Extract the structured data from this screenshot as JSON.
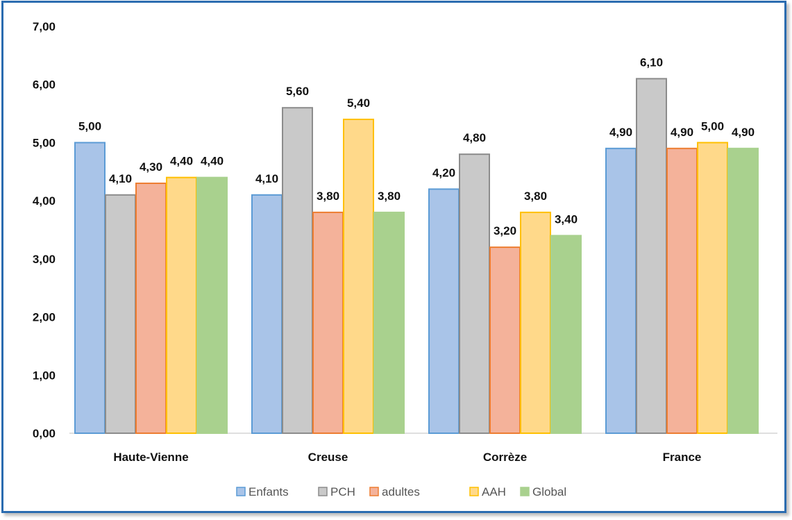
{
  "chart_data": {
    "type": "bar",
    "title": "",
    "xlabel": "",
    "ylabel": "",
    "categories": [
      "Haute-Vienne",
      "Creuse",
      "Corrèze",
      "France"
    ],
    "ylim": [
      0,
      7
    ],
    "yticks": [
      "0,00",
      "1,00",
      "2,00",
      "3,00",
      "4,00",
      "5,00",
      "6,00",
      "7,00"
    ],
    "grid": false,
    "legend_position": "bottom",
    "series": [
      {
        "name": "Enfants",
        "values": [
          5.0,
          4.1,
          4.2,
          4.9
        ],
        "labels": [
          "5,00",
          "4,10",
          "4,20",
          "4,90"
        ],
        "color": "#a9c4e8",
        "border": "#5b9bd5"
      },
      {
        "name": "PCH",
        "values": [
          4.1,
          5.6,
          4.8,
          6.1
        ],
        "labels": [
          "4,10",
          "5,60",
          "4,80",
          "6,10"
        ],
        "color": "#c9c9c9",
        "border": "#8c8c8c"
      },
      {
        "name": "adultes",
        "values": [
          4.3,
          3.8,
          3.2,
          4.9
        ],
        "labels": [
          "4,30",
          "3,80",
          "3,20",
          "4,90"
        ],
        "color": "#f4b29a",
        "border": "#ed7d31"
      },
      {
        "name": "AAH",
        "values": [
          4.4,
          5.4,
          3.8,
          5.0
        ],
        "labels": [
          "4,40",
          "5,40",
          "3,80",
          "5,00"
        ],
        "color": "#ffd98a",
        "border": "#ffc000"
      },
      {
        "name": "Global",
        "values": [
          4.4,
          3.8,
          3.4,
          4.9
        ],
        "labels": [
          "4,40",
          "3,80",
          "3,40",
          "4,90"
        ],
        "color": "#a9d18e",
        "border": "#a9d18e"
      }
    ]
  }
}
